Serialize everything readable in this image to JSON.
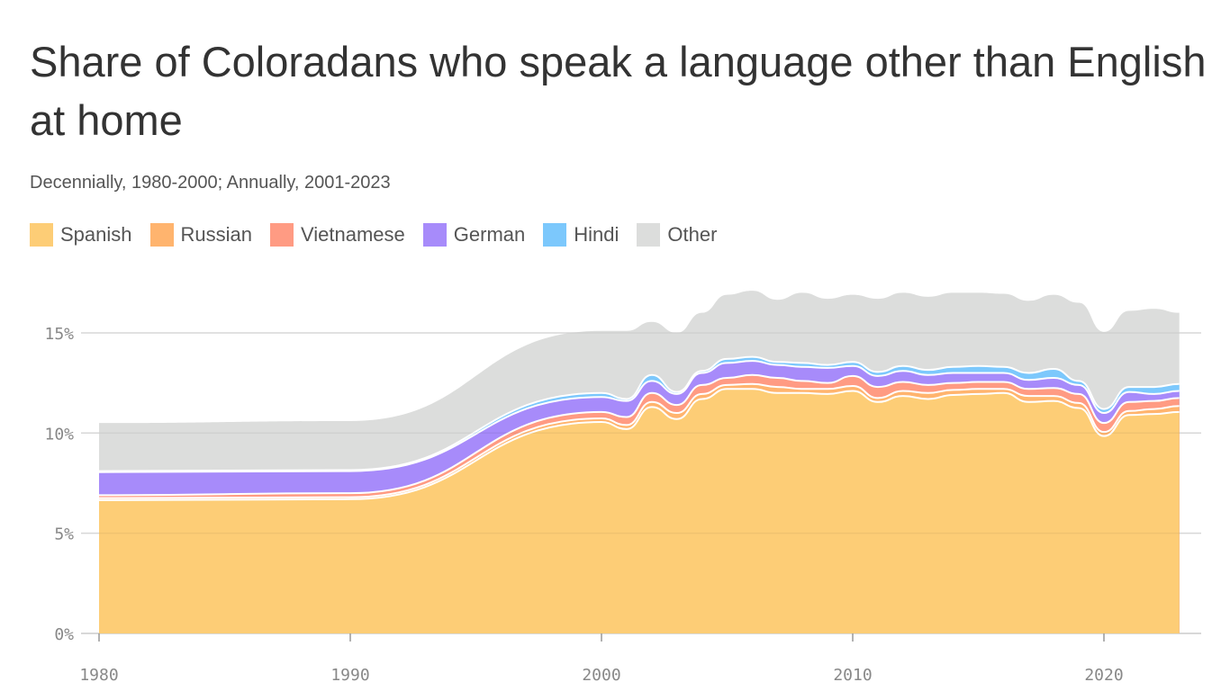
{
  "title": "Share of Coloradans who speak a language other than English at home",
  "subtitle": "Decennially, 1980-2000; Annually, 2001-2023",
  "chart_data": {
    "type": "area",
    "stacked": true,
    "title": "Share of Coloradans who speak a language other than English at home",
    "subtitle": "Decennially, 1980-2000; Annually, 2001-2023",
    "xlabel": "",
    "ylabel": "",
    "ylim": [
      0,
      17.5
    ],
    "yticks": [
      0,
      5,
      10,
      15
    ],
    "ytick_labels": [
      "0%",
      "5%",
      "10%",
      "15%"
    ],
    "xticks": [
      1980,
      1990,
      2000,
      2010,
      2020
    ],
    "xtick_labels": [
      "1980",
      "1990",
      "2000",
      "2010",
      "2020"
    ],
    "grid": true,
    "legend_position": "top-left",
    "x": [
      1980,
      1990,
      2000,
      2001,
      2002,
      2003,
      2004,
      2005,
      2006,
      2007,
      2008,
      2009,
      2010,
      2011,
      2012,
      2013,
      2014,
      2015,
      2016,
      2017,
      2018,
      2019,
      2020,
      2021,
      2022,
      2023
    ],
    "series": [
      {
        "name": "Spanish",
        "color": "#fdcd76",
        "values": [
          6.65,
          6.7,
          10.55,
          10.2,
          11.3,
          10.7,
          11.7,
          12.2,
          12.2,
          12.0,
          12.0,
          11.95,
          12.1,
          11.55,
          11.85,
          11.7,
          11.9,
          11.95,
          12.0,
          11.55,
          11.6,
          11.25,
          9.85,
          10.9,
          10.95,
          11.05
        ]
      },
      {
        "name": "Russian",
        "color": "#ffb46e",
        "values": [
          0.1,
          0.1,
          0.18,
          0.2,
          0.25,
          0.3,
          0.25,
          0.2,
          0.25,
          0.3,
          0.2,
          0.25,
          0.25,
          0.2,
          0.25,
          0.3,
          0.25,
          0.25,
          0.2,
          0.3,
          0.25,
          0.25,
          0.2,
          0.2,
          0.25,
          0.3
        ]
      },
      {
        "name": "Vietnamese",
        "color": "#ff9b83",
        "values": [
          0.15,
          0.2,
          0.32,
          0.4,
          0.45,
          0.4,
          0.45,
          0.35,
          0.45,
          0.45,
          0.4,
          0.3,
          0.5,
          0.55,
          0.45,
          0.4,
          0.35,
          0.35,
          0.35,
          0.35,
          0.4,
          0.45,
          0.45,
          0.45,
          0.4,
          0.4
        ]
      },
      {
        "name": "German",
        "color": "#a78bfa",
        "values": [
          1.15,
          1.1,
          0.75,
          0.8,
          0.6,
          0.55,
          0.6,
          0.75,
          0.7,
          0.65,
          0.7,
          0.75,
          0.5,
          0.55,
          0.55,
          0.5,
          0.5,
          0.45,
          0.45,
          0.45,
          0.5,
          0.45,
          0.5,
          0.5,
          0.35,
          0.35
        ]
      },
      {
        "name": "Hindi",
        "color": "#7cc8fc",
        "values": [
          0.05,
          0.05,
          0.2,
          0.1,
          0.3,
          0.1,
          0.1,
          0.2,
          0.2,
          0.15,
          0.2,
          0.15,
          0.2,
          0.2,
          0.25,
          0.25,
          0.3,
          0.35,
          0.3,
          0.35,
          0.45,
          0.2,
          0.2,
          0.25,
          0.35,
          0.35
        ]
      },
      {
        "name": "Other",
        "color": "#dcdddc",
        "values": [
          2.4,
          2.45,
          3.1,
          3.4,
          2.65,
          2.95,
          2.9,
          3.2,
          3.3,
          3.1,
          3.5,
          3.3,
          3.35,
          3.65,
          3.65,
          3.65,
          3.7,
          3.65,
          3.65,
          3.6,
          3.7,
          3.9,
          3.85,
          3.8,
          3.9,
          3.55
        ]
      }
    ]
  }
}
